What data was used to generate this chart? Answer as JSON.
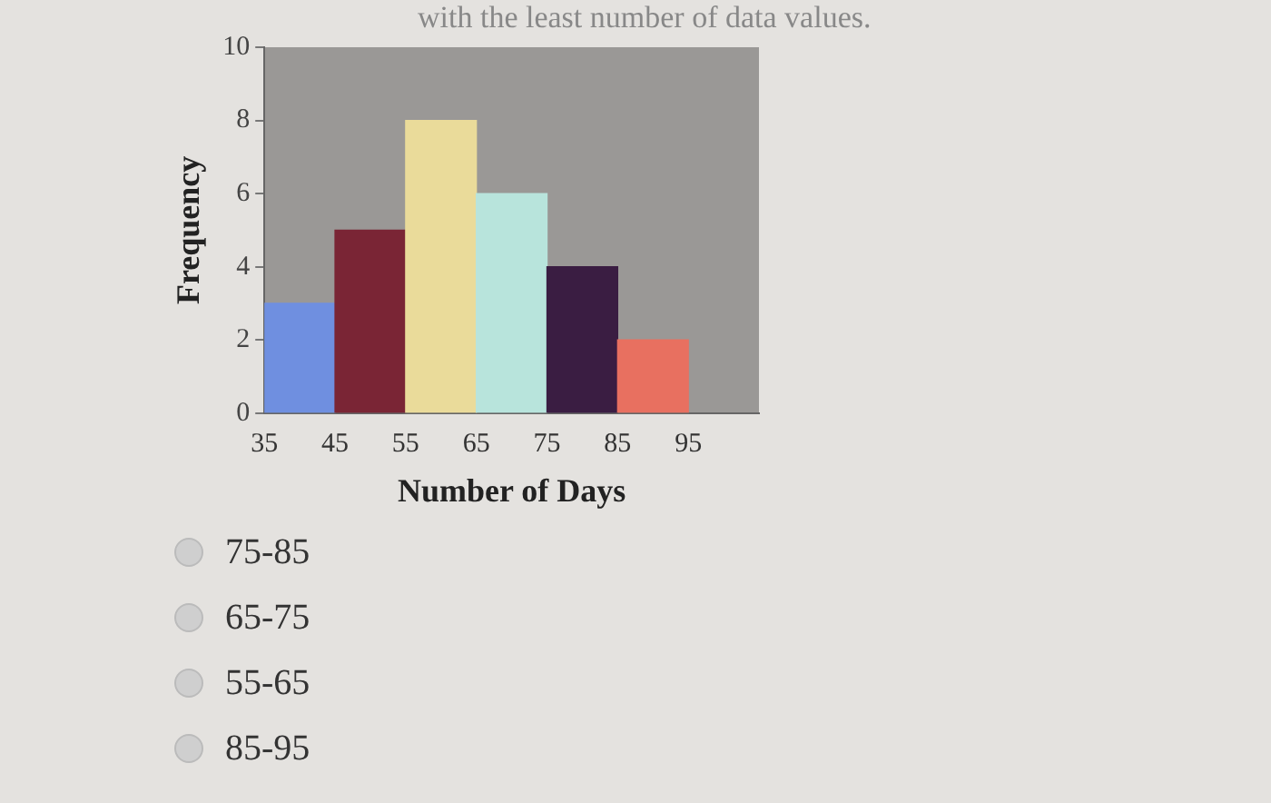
{
  "chart_data": {
    "type": "histogram",
    "xlabel": "Number of Days",
    "ylabel": "Frequency",
    "bins": [
      35,
      45,
      55,
      65,
      75,
      85,
      95
    ],
    "values": [
      3,
      5,
      8,
      6,
      4,
      2
    ],
    "colors": [
      "#6f8fe0",
      "#7a2535",
      "#eadb9a",
      "#b8e4dc",
      "#3a1d42",
      "#e87060"
    ],
    "xlim": [
      35,
      105
    ],
    "xticks": [
      35,
      45,
      55,
      65,
      75,
      85,
      95,
      {
        "value": 105,
        "label": null
      }
    ],
    "ylim": [
      0,
      10
    ],
    "yticks": [
      0,
      2,
      4,
      6,
      8,
      10
    ],
    "grid": false,
    "legend": false,
    "annotations": [
      "with the least number of data values.",
      "75-85",
      "65-75",
      "55-65",
      "85-95"
    ]
  }
}
